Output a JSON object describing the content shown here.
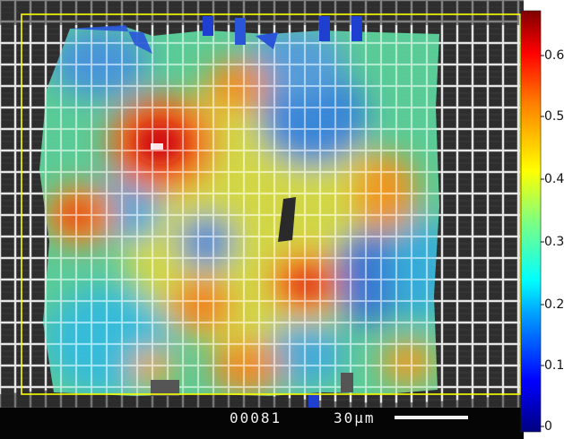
{
  "image": {
    "micrograph_footer": {
      "frame_number": "00081",
      "scale_bar_label": "30μm"
    },
    "colorbar": {
      "ticks": [
        "0.6",
        "0.5",
        "0.4",
        "0.3",
        "0.2",
        "0.1",
        "0"
      ],
      "colors": [
        "#00007f",
        "#0000ff",
        "#00a0ff",
        "#00ffff",
        "#7fff7f",
        "#ffff00",
        "#ff7f00",
        "#ff0000",
        "#7f0000"
      ]
    },
    "roi_outline_color": "#ffff00"
  }
}
